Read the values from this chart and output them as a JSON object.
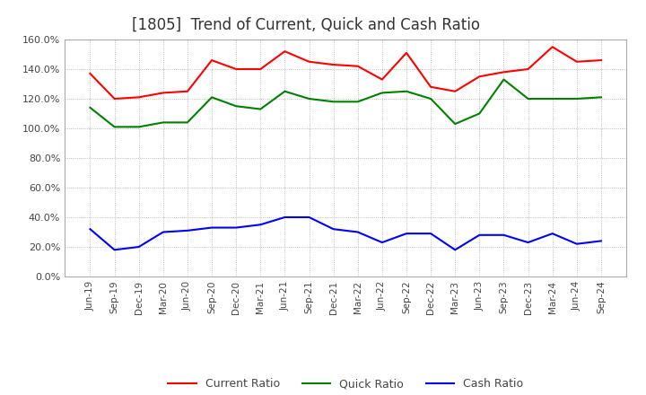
{
  "title": "[1805]  Trend of Current, Quick and Cash Ratio",
  "x_labels": [
    "Jun-19",
    "Sep-19",
    "Dec-19",
    "Mar-20",
    "Jun-20",
    "Sep-20",
    "Dec-20",
    "Mar-21",
    "Jun-21",
    "Sep-21",
    "Dec-21",
    "Mar-22",
    "Jun-22",
    "Sep-22",
    "Dec-22",
    "Mar-23",
    "Jun-23",
    "Sep-23",
    "Dec-23",
    "Mar-24",
    "Jun-24",
    "Sep-24"
  ],
  "current_ratio": [
    137,
    120,
    121,
    124,
    125,
    146,
    140,
    140,
    152,
    145,
    143,
    142,
    133,
    151,
    128,
    125,
    135,
    138,
    140,
    155,
    145,
    146
  ],
  "quick_ratio": [
    114,
    101,
    101,
    104,
    104,
    121,
    115,
    113,
    125,
    120,
    118,
    118,
    124,
    125,
    120,
    103,
    110,
    133,
    120,
    120,
    120,
    121
  ],
  "cash_ratio": [
    32,
    18,
    20,
    30,
    31,
    33,
    33,
    35,
    40,
    40,
    32,
    30,
    23,
    29,
    29,
    18,
    28,
    28,
    23,
    29,
    22,
    24
  ],
  "current_color": "#FF0000",
  "quick_color": "#008000",
  "cash_color": "#0000FF",
  "ylim": [
    0,
    160
  ],
  "yticks": [
    0,
    20,
    40,
    60,
    80,
    100,
    120,
    140,
    160
  ],
  "background_color": "#FFFFFF",
  "grid_color": "#AAAAAA",
  "title_fontsize": 12,
  "legend_labels": [
    "Current Ratio",
    "Quick Ratio",
    "Cash Ratio"
  ]
}
